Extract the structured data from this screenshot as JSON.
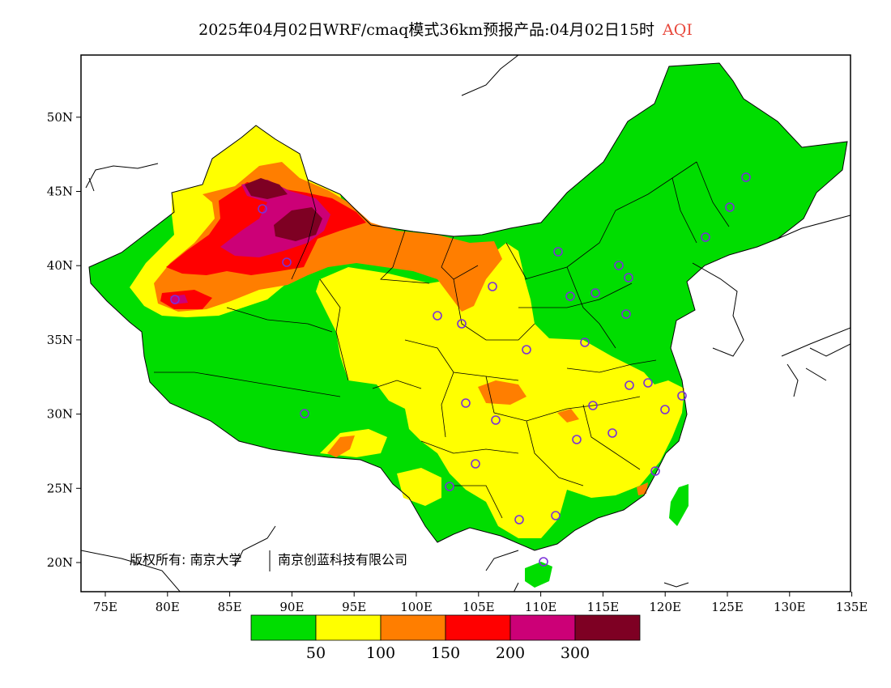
{
  "title": {
    "text": "2025年04月02日WRF/cmaq模式36km预报产品:04月02日15时",
    "variable": "AQI",
    "variable_color": "#e8483c"
  },
  "axes": {
    "x_ticks": [
      "75E",
      "80E",
      "85E",
      "90E",
      "95E",
      "100E",
      "105E",
      "110E",
      "115E",
      "120E",
      "125E",
      "130E",
      "135E"
    ],
    "y_ticks": [
      "20N",
      "25N",
      "30N",
      "35N",
      "40N",
      "45N",
      "50N"
    ],
    "lon_range": [
      73,
      135
    ],
    "lat_range": [
      18,
      54
    ]
  },
  "copyright": {
    "owner1": "版权所有: 南京大学",
    "owner2": "南京创蓝科技有限公司"
  },
  "legend": {
    "colors": [
      "#00dd00",
      "#ffff00",
      "#ff7e00",
      "#ff0000",
      "#cc0077",
      "#7e0023"
    ],
    "labels": [
      "50",
      "100",
      "150",
      "200",
      "300"
    ]
  },
  "station_color": "#7a30d8"
}
